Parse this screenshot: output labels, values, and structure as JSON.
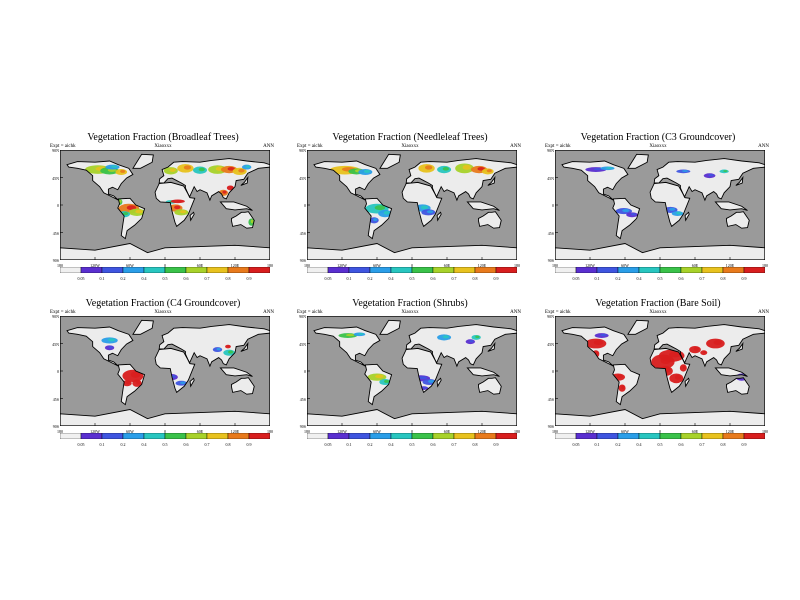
{
  "chart_data": [
    {
      "type": "heatmap",
      "title": "Vegetation Fraction (Broadleaf Trees)",
      "subtitle_left": "Expt = aichk",
      "subtitle_center": "Xiaoxxx",
      "subtitle_right": "ANN",
      "colormap_key": "warm_forest"
    },
    {
      "type": "heatmap",
      "title": "Vegetation Fraction (Needleleaf Trees)",
      "subtitle_left": "Expt = aichk",
      "subtitle_center": "Xiaoxxx",
      "subtitle_right": "ANN",
      "colormap_key": "needle"
    },
    {
      "type": "heatmap",
      "title": "Vegetation Fraction (C3 Groundcover)",
      "subtitle_left": "Expt = aichk",
      "subtitle_center": "Xiaoxxx",
      "subtitle_right": "ANN",
      "colormap_key": "c3"
    },
    {
      "type": "heatmap",
      "title": "Vegetation Fraction (C4 Groundcover)",
      "subtitle_left": "Expt = aichk",
      "subtitle_center": "Xiaoxxx",
      "subtitle_right": "ANN",
      "colormap_key": "c4"
    },
    {
      "type": "heatmap",
      "title": "Vegetation Fraction (Shrubs)",
      "subtitle_left": "Expt = aichk",
      "subtitle_center": "Xiaoxxx",
      "subtitle_right": "ANN",
      "colormap_key": "shrubs"
    },
    {
      "type": "heatmap",
      "title": "Vegetation Fraction (Bare Soil)",
      "subtitle_left": "Expt = aichk",
      "subtitle_center": "Xiaoxxx",
      "subtitle_right": "ANN",
      "colormap_key": "bare"
    }
  ],
  "axes": {
    "lat_ticks": [
      "90N",
      "45N",
      "0",
      "45S",
      "90S"
    ],
    "lon_ticks": [
      "180",
      "120W",
      "60W",
      "0",
      "60E",
      "120E",
      "180"
    ],
    "xlim": [
      -180,
      180
    ],
    "ylim": [
      -90,
      90
    ]
  },
  "colorbar": {
    "levels": [
      0.05,
      0.1,
      0.2,
      0.4,
      0.5,
      0.6,
      0.7,
      0.8,
      0.9
    ],
    "labels": [
      "0.05",
      "0.1",
      "0.2",
      "0.4",
      "0.5",
      "0.6",
      "0.7",
      "0.8",
      "0.9"
    ],
    "colors": [
      "#f0f0f0",
      "#5a2fd0",
      "#3f55e0",
      "#2a9ee8",
      "#28c6c0",
      "#3ac24a",
      "#a8d22a",
      "#e8c21e",
      "#e87a1c",
      "#d81e1e"
    ]
  },
  "colors": {
    "ocean": "#9a9a9a",
    "land": "#ececec",
    "coast": "#000000"
  }
}
